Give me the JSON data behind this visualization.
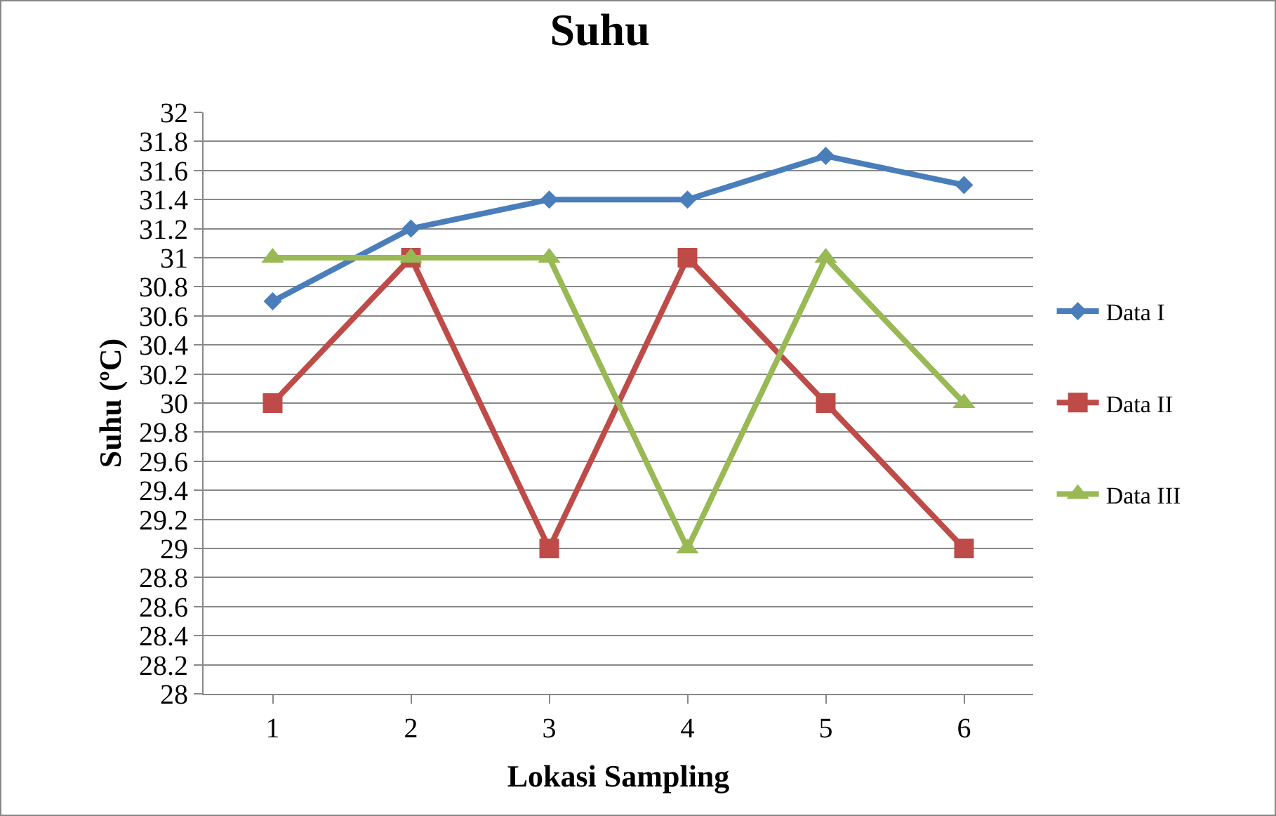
{
  "chart_data": {
    "type": "line",
    "title": "Suhu",
    "xlabel": "Lokasi Sampling",
    "ylabel": "Suhu (ºC)",
    "categories": [
      "1",
      "2",
      "3",
      "4",
      "5",
      "6"
    ],
    "series": [
      {
        "name": "Data I",
        "color": "#4a7ebb",
        "marker": "diamond",
        "values": [
          30.7,
          31.2,
          31.4,
          31.4,
          31.7,
          31.5
        ]
      },
      {
        "name": "Data II",
        "color": "#be4b48",
        "marker": "square",
        "values": [
          30,
          31,
          29,
          31,
          30,
          29
        ]
      },
      {
        "name": "Data III",
        "color": "#98b954",
        "marker": "triangle",
        "values": [
          31,
          31,
          31,
          29,
          31,
          30
        ]
      }
    ],
    "ylim": [
      28,
      32
    ],
    "yticks": [
      28,
      28.2,
      28.4,
      28.6,
      28.8,
      29,
      29.2,
      29.4,
      29.6,
      29.8,
      30,
      30.2,
      30.4,
      30.6,
      30.8,
      31,
      31.2,
      31.4,
      31.6,
      31.8,
      32
    ],
    "grid": "y",
    "legend": "right",
    "line_style": "solid"
  }
}
